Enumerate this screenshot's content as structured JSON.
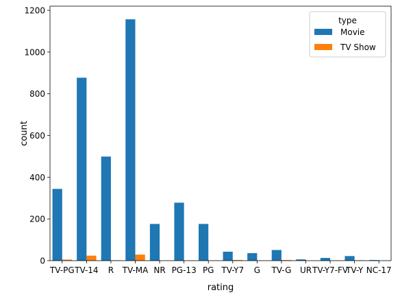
{
  "chart_data": {
    "type": "bar",
    "title": "",
    "xlabel": "rating",
    "ylabel": "count",
    "ylim": [
      0,
      1220
    ],
    "yticks": [
      0,
      200,
      400,
      600,
      800,
      1000,
      1200
    ],
    "categories": [
      "TV-PG",
      "TV-14",
      "R",
      "TV-MA",
      "NR",
      "PG-13",
      "PG",
      "TV-Y7",
      "G",
      "TV-G",
      "UR",
      "TV-Y7-FV",
      "TV-Y",
      "NC-17"
    ],
    "legend": {
      "title": "type",
      "placement": "upper-right"
    },
    "series": [
      {
        "name": "Movie",
        "color": "#1f77b4",
        "values": [
          344,
          877,
          499,
          1157,
          176,
          278,
          176,
          43,
          36,
          51,
          6,
          13,
          22,
          3
        ]
      },
      {
        "name": "TV Show",
        "color": "#ff7f0e",
        "values": [
          5,
          24,
          2,
          29,
          0,
          0,
          0,
          3,
          0,
          3,
          0,
          1,
          2,
          0
        ]
      }
    ]
  }
}
